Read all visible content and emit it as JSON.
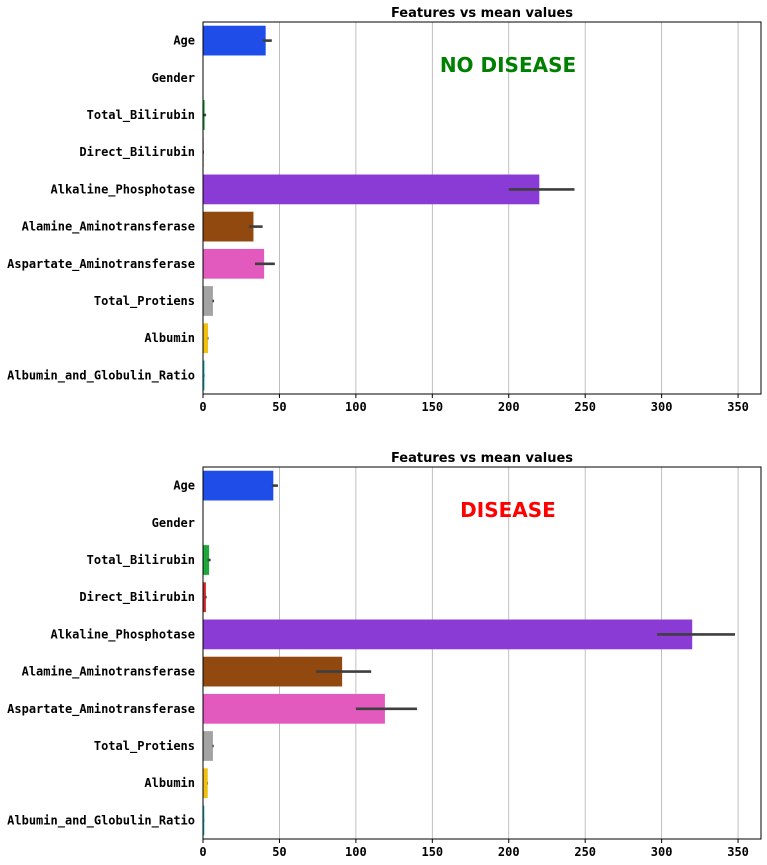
{
  "chart_data": [
    {
      "type": "bar",
      "orientation": "horizontal",
      "title": "Features vs mean values",
      "annotation": "NO DISEASE",
      "annotation_color": "#008000",
      "xlim": [
        0,
        365
      ],
      "xticks": [
        0,
        50,
        100,
        150,
        200,
        250,
        300,
        350
      ],
      "grid": "x",
      "categories": [
        "Age",
        "Gender",
        "Total_Bilirubin",
        "Direct_Bilirubin",
        "Alkaline_Phosphotase",
        "Alamine_Aminotransferase",
        "Aspartate_Aminotransferase",
        "Total_Protiens",
        "Albumin",
        "Albumin_and_Globulin_Ratio"
      ],
      "values": [
        41,
        0,
        1.1,
        0.4,
        220,
        33,
        40,
        6.5,
        3.3,
        1.0
      ],
      "err_low": [
        39,
        0,
        0,
        0,
        200,
        30,
        34,
        6.2,
        3.1,
        0.9
      ],
      "err_high": [
        45,
        0,
        2,
        0.6,
        243,
        39,
        47,
        7.2,
        3.6,
        1.1
      ],
      "colors": [
        "#1f4de8",
        "#ff7f0e",
        "#1ea83b",
        "#d62728",
        "#8a3bd6",
        "#91490f",
        "#e35abf",
        "#a3a3a3",
        "#f0c20f",
        "#17becf"
      ]
    },
    {
      "type": "bar",
      "orientation": "horizontal",
      "title": "Features vs mean values",
      "annotation": "DISEASE",
      "annotation_color": "#ff0000",
      "xlim": [
        0,
        365
      ],
      "xticks": [
        0,
        50,
        100,
        150,
        200,
        250,
        300,
        350
      ],
      "grid": "x",
      "categories": [
        "Age",
        "Gender",
        "Total_Bilirubin",
        "Direct_Bilirubin",
        "Alkaline_Phosphotase",
        "Alamine_Aminotransferase",
        "Aspartate_Aminotransferase",
        "Total_Protiens",
        "Albumin",
        "Albumin_and_Globulin_Ratio"
      ],
      "values": [
        46,
        0,
        4,
        1.9,
        320,
        91,
        119,
        6.5,
        3.1,
        0.9
      ],
      "err_low": [
        45,
        0,
        3,
        1.5,
        297,
        74,
        100,
        6.2,
        3.0,
        0.85
      ],
      "err_high": [
        49,
        0,
        5,
        2.4,
        348,
        110,
        140,
        7.0,
        3.3,
        0.95
      ],
      "colors": [
        "#1f4de8",
        "#ff7f0e",
        "#1ea83b",
        "#d62728",
        "#8a3bd6",
        "#91490f",
        "#e35abf",
        "#a3a3a3",
        "#f0c20f",
        "#17becf"
      ]
    }
  ]
}
